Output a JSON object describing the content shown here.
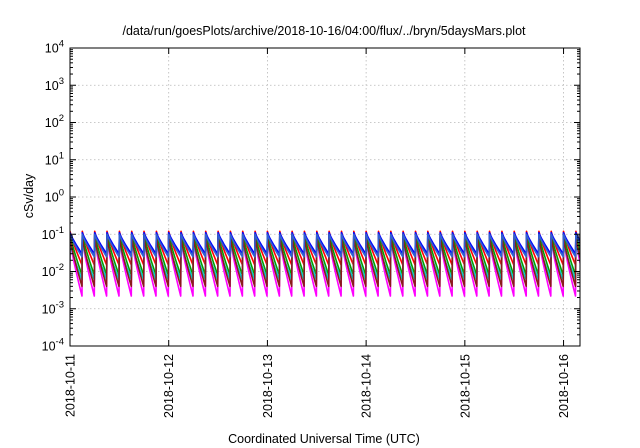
{
  "chart_data": {
    "type": "line",
    "title": "/data/run/goesPlots/archive/2018-10-16/04:00/flux/../bryn/5daysMars.plot",
    "xlabel": "Coordinated Universal Time (UTC)",
    "ylabel": "cSv/day",
    "y_scale": "log",
    "ylim": [
      0.0001,
      10000
    ],
    "y_ticks": [
      {
        "base": "10",
        "exp": "4"
      },
      {
        "base": "10",
        "exp": "3"
      },
      {
        "base": "10",
        "exp": "2"
      },
      {
        "base": "10",
        "exp": "1"
      },
      {
        "base": "10",
        "exp": "0"
      },
      {
        "base": "10",
        "exp": "-1"
      },
      {
        "base": "10",
        "exp": "-2"
      },
      {
        "base": "10",
        "exp": "-3"
      },
      {
        "base": "10",
        "exp": "-4"
      }
    ],
    "xlim": [
      "2018-10-11",
      "2018-10-16T04:00"
    ],
    "x_ticks": [
      "2018-10-11",
      "2018-10-12",
      "2018-10-13",
      "2018-10-14",
      "2018-10-15",
      "2018-10-16"
    ],
    "grid": true,
    "cycles_per_day": 8,
    "series": [
      {
        "color": "#ff0000",
        "peak": 0.12,
        "trough": 0.015
      },
      {
        "color": "#00a000",
        "peak": 0.1,
        "trough": 0.008
      },
      {
        "color": "#0000ff",
        "peak": 0.11,
        "trough": 0.03
      },
      {
        "color": "#ff00ff",
        "peak": 0.07,
        "trough": 0.0022
      },
      {
        "color": "#00c8c8",
        "peak": 0.06,
        "trough": 0.006
      },
      {
        "color": "#8b1a1a",
        "peak": 0.08,
        "trough": 0.004
      },
      {
        "color": "#3060d0",
        "peak": 0.1,
        "trough": 0.025
      }
    ]
  }
}
